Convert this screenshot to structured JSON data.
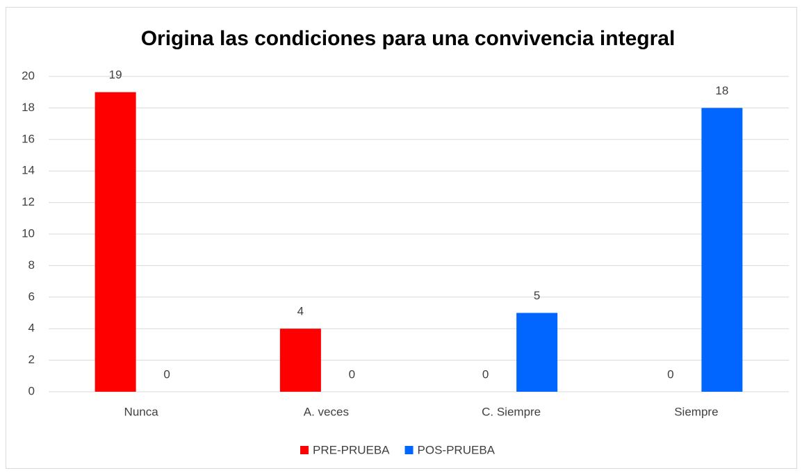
{
  "chart_data": {
    "type": "bar",
    "title": "Origina las condiciones para una convivencia integral",
    "categories": [
      "Nunca",
      "A. veces",
      "C. Siempre",
      "Siempre"
    ],
    "series": [
      {
        "name": "PRE-PRUEBA",
        "color": "#ff0000",
        "values": [
          19,
          4,
          0,
          0
        ]
      },
      {
        "name": "POS-PRUEBA",
        "color": "#0066ff",
        "values": [
          0,
          0,
          5,
          18
        ]
      }
    ],
    "ylim": [
      0,
      20
    ],
    "yticks": [
      0,
      2,
      4,
      6,
      8,
      10,
      12,
      14,
      16,
      18,
      20
    ],
    "grid": true,
    "legend": "bottom"
  }
}
